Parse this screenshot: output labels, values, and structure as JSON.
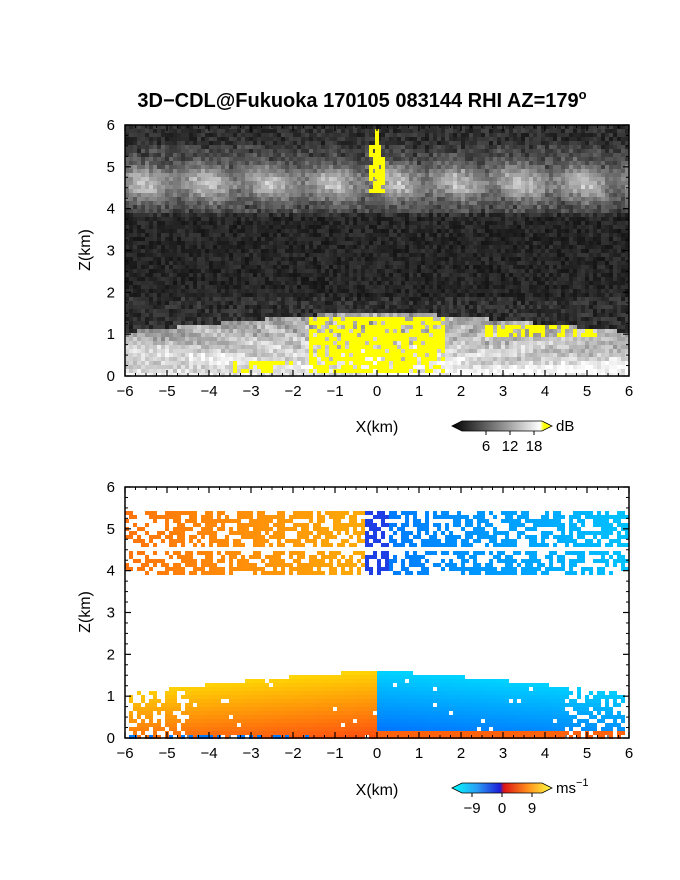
{
  "figure_title": "3D−CDL@Fukuoka 170105 083144 RHI AZ=179",
  "figure_title_sup": "o",
  "chart_data": [
    {
      "type": "heatmap",
      "variable": "SNR",
      "colormap": "grayscale, yellow above 18",
      "xlabel": "X(km)",
      "ylabel": "Z(km)",
      "xlim": [
        -6,
        6
      ],
      "ylim": [
        0,
        6
      ],
      "xticks": [
        "−6",
        "−5",
        "−4",
        "−3",
        "−2",
        "−1",
        "0",
        "1",
        "2",
        "3",
        "4",
        "5",
        "6"
      ],
      "yticks": [
        "0",
        "1",
        "2",
        "3",
        "4",
        "5",
        "6"
      ],
      "colorbar": {
        "unit": "dB",
        "ticks": [
          "6",
          "12",
          "18"
        ],
        "min": 0,
        "max": 20,
        "high_color": "#ffff00"
      },
      "features": [
        {
          "name": "boundary-layer echo",
          "z_km": [
            0,
            1.6
          ],
          "x_km": [
            -6,
            6
          ]
        },
        {
          "name": "upper cloud layer",
          "z_km": [
            3.9,
            5.6
          ],
          "x_km": [
            -6,
            6
          ]
        },
        {
          "name": "noise band",
          "z_km": [
            2,
            3.8
          ]
        }
      ]
    },
    {
      "type": "heatmap",
      "variable": "Doppler velocity",
      "colormap": "diverging blue-cyan / red-yellow",
      "xlabel": "X(km)",
      "ylabel": "Z(km)",
      "xlim": [
        -6,
        6
      ],
      "ylim": [
        0,
        6
      ],
      "xticks": [
        "−6",
        "−5",
        "−4",
        "−3",
        "−2",
        "−1",
        "0",
        "1",
        "2",
        "3",
        "4",
        "5",
        "6"
      ],
      "yticks": [
        "0",
        "1",
        "2",
        "3",
        "4",
        "5",
        "6"
      ],
      "colorbar": {
        "unit": "ms",
        "unit_sup": "−1",
        "ticks": [
          "−9",
          "0",
          "9"
        ],
        "min": -12,
        "max": 12
      },
      "features": [
        {
          "name": "low-level flow",
          "z_km": [
            0,
            1.6
          ],
          "x_km": [
            -6,
            6
          ],
          "left_sign": "positive",
          "right_sign": "negative"
        },
        {
          "name": "upper cloud flow",
          "z_km": [
            3.8,
            5.6
          ],
          "x_km": [
            -6,
            6
          ],
          "left_sign": "positive",
          "right_sign": "negative"
        }
      ]
    }
  ]
}
